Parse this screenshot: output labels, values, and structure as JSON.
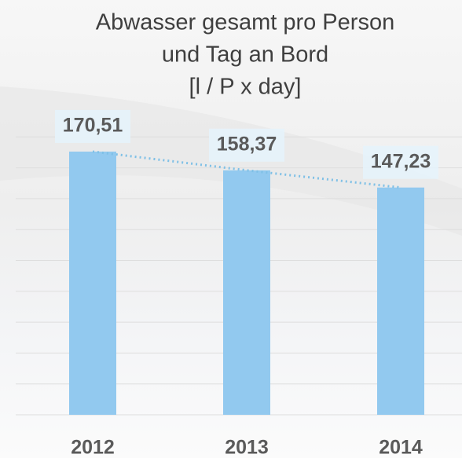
{
  "chart_data": {
    "type": "bar",
    "title": [
      "Abwasser gesamt pro Person",
      "und Tag an Bord",
      "[l / P x day]"
    ],
    "categories": [
      "2012",
      "2013",
      "2014"
    ],
    "values": [
      170.51,
      158.37,
      147.23
    ],
    "value_labels": [
      "170,51",
      "158,37",
      "147,23"
    ],
    "color": "#92c9ef",
    "ylim": [
      0,
      200
    ],
    "yticks": [
      0,
      20,
      40,
      60,
      80,
      100,
      120,
      140,
      160,
      180
    ],
    "grid": true
  }
}
